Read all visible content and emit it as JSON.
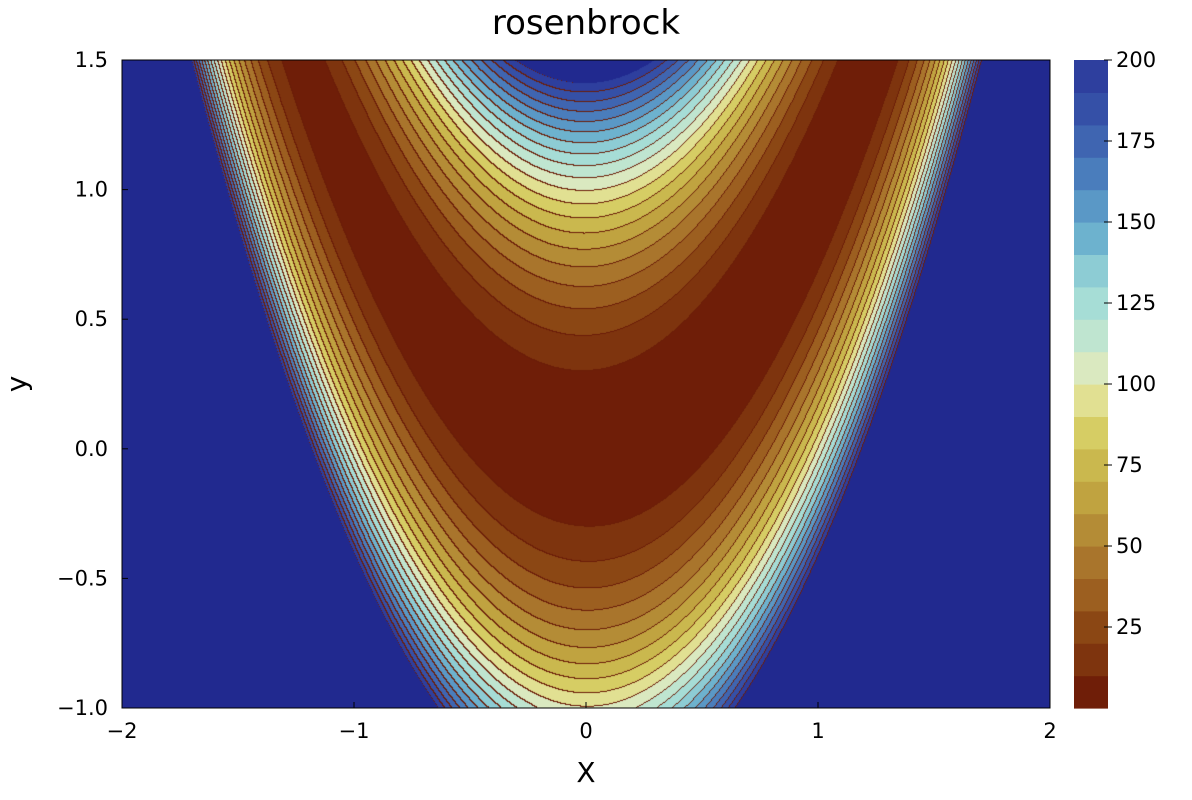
{
  "chart_data": {
    "type": "contourf",
    "title": "rosenbrock",
    "xlabel": "X",
    "ylabel": "y",
    "function": "(1 - x)^2 + 100*(y - x^2)^2",
    "xlim": [
      -2,
      2
    ],
    "ylim": [
      -1,
      1.5
    ],
    "xticks": [
      -2,
      -1,
      0,
      1,
      2
    ],
    "xtick_labels": [
      "−2",
      "−1",
      "0",
      "1",
      "2"
    ],
    "yticks": [
      -1,
      -0.5,
      0,
      0.5,
      1,
      1.5
    ],
    "ytick_labels": [
      "−1.0",
      "−0.5",
      "0.0",
      "0.5",
      "1.0",
      "1.5"
    ],
    "levels": [
      0,
      10,
      20,
      30,
      40,
      50,
      60,
      70,
      80,
      90,
      100,
      110,
      120,
      130,
      140,
      150,
      160,
      170,
      180,
      190,
      200
    ],
    "colorbar": {
      "ticks": [
        25,
        50,
        75,
        100,
        125,
        150,
        175,
        200
      ],
      "tick_labels": [
        "25",
        "50",
        "75",
        "100",
        "125",
        "150",
        "175",
        "200"
      ],
      "range": [
        0,
        200
      ]
    },
    "colormap": [
      "#6f1e08",
      "#7e340e",
      "#8b4714",
      "#9c5f20",
      "#a9752c",
      "#b48c36",
      "#c0a340",
      "#cab84e",
      "#d6cd64",
      "#e1e092",
      "#dae9c0",
      "#bfe5d0",
      "#a6ddd6",
      "#8dccd4",
      "#6db2ce",
      "#5a98c6",
      "#4a7dbc",
      "#3f65b1",
      "#3550a7",
      "#2e3f9e"
    ],
    "over_color": "#21298f",
    "contour_line_color": "#6b1d08",
    "grid": false,
    "legend": "colorbar-right"
  }
}
